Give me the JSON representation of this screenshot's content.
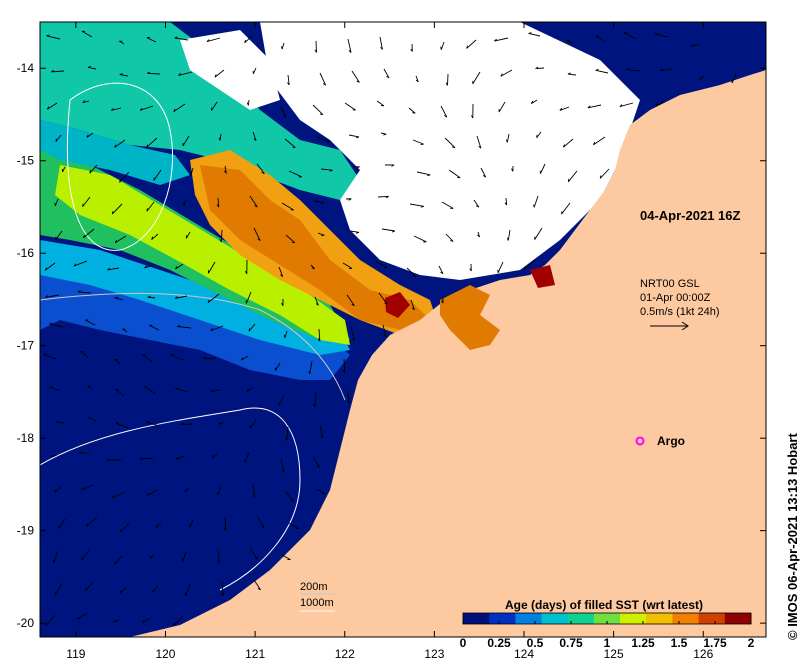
{
  "map": {
    "lon_ticks": [
      119,
      120,
      121,
      122,
      123,
      124,
      125,
      126
    ],
    "lat_ticks": [
      -14,
      -15,
      -16,
      -17,
      -18,
      -19,
      -20
    ],
    "lon_range": [
      118.6,
      126.7
    ],
    "lat_range": [
      -20.15,
      -13.5
    ]
  },
  "annotations": {
    "date": "04-Apr-2021 16Z",
    "current_product": "NRT00 GSL",
    "current_date": "01-Apr 00:00Z",
    "current_scale": "0.5m/s (1kt 24h)",
    "argo_label": "Argo",
    "contour_200": "200m",
    "contour_1000": "1000m",
    "credit": "© IMOS 06-Apr-2021 13:13 Hobart"
  },
  "colorbar": {
    "title": "Age (days) of filled SST (wrt latest)",
    "tick_labels": [
      "0",
      "0.25",
      "0.5",
      "0.75",
      "1",
      "1.25",
      "1.5",
      "1.75",
      "2"
    ],
    "range": [
      0,
      2
    ],
    "colors": [
      "#00107a",
      "#0030c0",
      "#0080e0",
      "#00c0d0",
      "#10d090",
      "#70e040",
      "#d0f000",
      "#f0c000",
      "#f08000",
      "#d04000",
      "#900000"
    ]
  },
  "colors": {
    "land": "#fdc9a0",
    "deep_water": "#001480",
    "no_data": "#ffffff",
    "argo_marker": "#ff00ff"
  }
}
